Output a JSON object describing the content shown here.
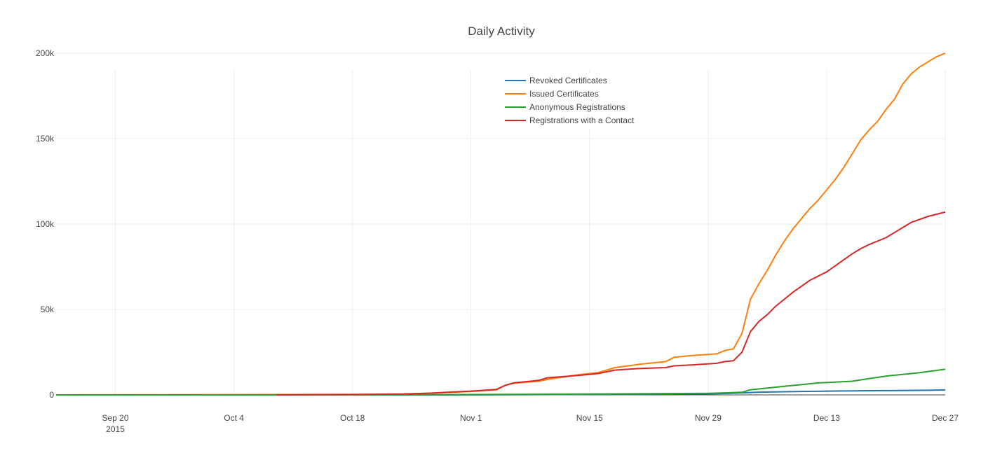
{
  "chart_data": {
    "type": "line",
    "title": "Daily Activity",
    "xlabel": "",
    "ylabel": "",
    "x_range": [
      "2015-09-13",
      "2015-12-27"
    ],
    "ylim": [
      0,
      200000
    ],
    "y_ticks": [
      0,
      50000,
      100000,
      150000,
      200000
    ],
    "y_tick_labels": [
      "0",
      "50k",
      "100k",
      "150k",
      "200k"
    ],
    "x_ticks": [
      "2015-09-20",
      "2015-10-04",
      "2015-10-18",
      "2015-11-01",
      "2015-11-15",
      "2015-11-29",
      "2015-12-13",
      "2015-12-27"
    ],
    "x_tick_labels": [
      "Sep 20",
      "Oct 4",
      "Oct 18",
      "Nov 1",
      "Nov 15",
      "Nov 29",
      "Dec 13",
      "Dec 27"
    ],
    "x_tick_sublabel": "2015",
    "grid": true,
    "legend_position": "top-center",
    "series": [
      {
        "name": "Revoked Certificates",
        "color": "#1f77b4",
        "points": [
          [
            "2015-09-13",
            0
          ],
          [
            "2015-10-18",
            0
          ],
          [
            "2015-11-01",
            0
          ],
          [
            "2015-11-15",
            300
          ],
          [
            "2015-11-29",
            600
          ],
          [
            "2015-12-01",
            800
          ],
          [
            "2015-12-03",
            1200
          ],
          [
            "2015-12-05",
            1600
          ],
          [
            "2015-12-10",
            2000
          ],
          [
            "2015-12-15",
            2300
          ],
          [
            "2015-12-20",
            2500
          ],
          [
            "2015-12-25",
            2700
          ],
          [
            "2015-12-27",
            2900
          ]
        ]
      },
      {
        "name": "Issued Certificates",
        "color": "#ff7f0e",
        "points": [
          [
            "2015-09-13",
            0
          ],
          [
            "2015-10-18",
            300
          ],
          [
            "2015-10-24",
            500
          ],
          [
            "2015-10-27",
            1000
          ],
          [
            "2015-11-01",
            2000
          ],
          [
            "2015-11-04",
            3000
          ],
          [
            "2015-11-05",
            5500
          ],
          [
            "2015-11-06",
            6800
          ],
          [
            "2015-11-09",
            8000
          ],
          [
            "2015-11-10",
            9000
          ],
          [
            "2015-11-12",
            10500
          ],
          [
            "2015-11-14",
            12000
          ],
          [
            "2015-11-16",
            13000
          ],
          [
            "2015-11-18",
            16000
          ],
          [
            "2015-11-21",
            18000
          ],
          [
            "2015-11-24",
            19500
          ],
          [
            "2015-11-25",
            22000
          ],
          [
            "2015-11-27",
            23000
          ],
          [
            "2015-11-30",
            24000
          ],
          [
            "2015-12-01",
            26000
          ],
          [
            "2015-12-02",
            27000
          ],
          [
            "2015-12-03",
            36000
          ],
          [
            "2015-12-04",
            56000
          ],
          [
            "2015-12-05",
            65000
          ],
          [
            "2015-12-06",
            73000
          ],
          [
            "2015-12-07",
            82000
          ],
          [
            "2015-12-08",
            90000
          ],
          [
            "2015-12-09",
            97000
          ],
          [
            "2015-12-10",
            103000
          ],
          [
            "2015-12-11",
            109000
          ],
          [
            "2015-12-12",
            114000
          ],
          [
            "2015-12-13",
            120000
          ],
          [
            "2015-12-14",
            126000
          ],
          [
            "2015-12-15",
            133000
          ],
          [
            "2015-12-16",
            141000
          ],
          [
            "2015-12-17",
            149000
          ],
          [
            "2015-12-18",
            155000
          ],
          [
            "2015-12-19",
            160000
          ],
          [
            "2015-12-20",
            167000
          ],
          [
            "2015-12-21",
            173000
          ],
          [
            "2015-12-22",
            182000
          ],
          [
            "2015-12-23",
            188000
          ],
          [
            "2015-12-24",
            192000
          ],
          [
            "2015-12-25",
            195000
          ],
          [
            "2015-12-26",
            198000
          ],
          [
            "2015-12-27",
            200000
          ]
        ]
      },
      {
        "name": "Anonymous Registrations",
        "color": "#2ca02c",
        "points": [
          [
            "2015-09-13",
            0
          ],
          [
            "2015-10-18",
            0
          ],
          [
            "2015-11-01",
            200
          ],
          [
            "2015-11-15",
            500
          ],
          [
            "2015-11-29",
            900
          ],
          [
            "2015-12-01",
            1200
          ],
          [
            "2015-12-03",
            1500
          ],
          [
            "2015-12-04",
            3000
          ],
          [
            "2015-12-06",
            4000
          ],
          [
            "2015-12-08",
            5000
          ],
          [
            "2015-12-10",
            6000
          ],
          [
            "2015-12-12",
            7000
          ],
          [
            "2015-12-14",
            7500
          ],
          [
            "2015-12-16",
            8000
          ],
          [
            "2015-12-18",
            9500
          ],
          [
            "2015-12-20",
            11000
          ],
          [
            "2015-12-22",
            12000
          ],
          [
            "2015-12-24",
            13000
          ],
          [
            "2015-12-27",
            15000
          ]
        ]
      },
      {
        "name": "Registrations with a Contact",
        "color": "#d62728",
        "points": [
          [
            "2015-10-09",
            0
          ],
          [
            "2015-10-18",
            200
          ],
          [
            "2015-10-24",
            500
          ],
          [
            "2015-10-27",
            1000
          ],
          [
            "2015-11-01",
            2200
          ],
          [
            "2015-11-04",
            3200
          ],
          [
            "2015-11-05",
            5500
          ],
          [
            "2015-11-06",
            7000
          ],
          [
            "2015-11-09",
            8500
          ],
          [
            "2015-11-10",
            10000
          ],
          [
            "2015-11-14",
            11500
          ],
          [
            "2015-11-16",
            12500
          ],
          [
            "2015-11-18",
            14500
          ],
          [
            "2015-11-21",
            15500
          ],
          [
            "2015-11-24",
            16000
          ],
          [
            "2015-11-25",
            17000
          ],
          [
            "2015-11-27",
            17500
          ],
          [
            "2015-11-30",
            18500
          ],
          [
            "2015-12-01",
            19500
          ],
          [
            "2015-12-02",
            20000
          ],
          [
            "2015-12-03",
            25000
          ],
          [
            "2015-12-04",
            37000
          ],
          [
            "2015-12-05",
            43000
          ],
          [
            "2015-12-06",
            47000
          ],
          [
            "2015-12-07",
            52000
          ],
          [
            "2015-12-08",
            56000
          ],
          [
            "2015-12-09",
            60000
          ],
          [
            "2015-12-10",
            63500
          ],
          [
            "2015-12-11",
            67000
          ],
          [
            "2015-12-13",
            72000
          ],
          [
            "2015-12-14",
            75500
          ],
          [
            "2015-12-15",
            79000
          ],
          [
            "2015-12-16",
            82500
          ],
          [
            "2015-12-17",
            85500
          ],
          [
            "2015-12-18",
            88000
          ],
          [
            "2015-12-20",
            92000
          ],
          [
            "2015-12-21",
            95000
          ],
          [
            "2015-12-22",
            98000
          ],
          [
            "2015-12-23",
            101000
          ],
          [
            "2015-12-25",
            104500
          ],
          [
            "2015-12-27",
            107000
          ]
        ]
      }
    ]
  }
}
